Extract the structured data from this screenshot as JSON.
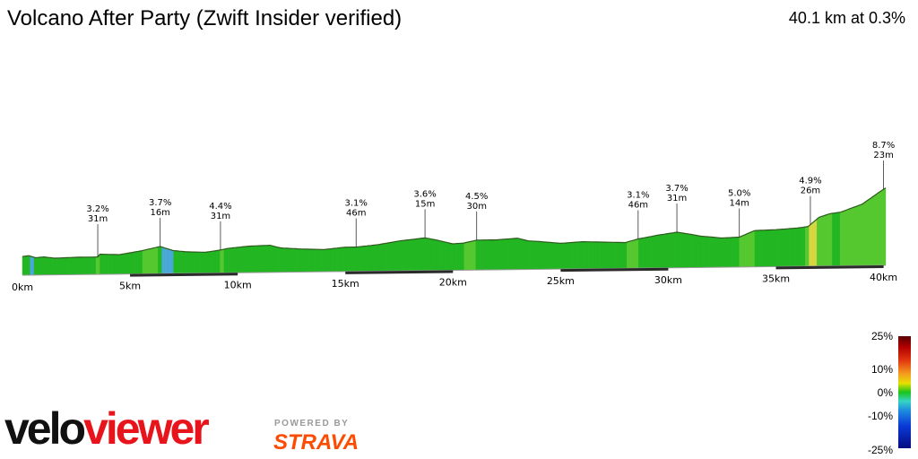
{
  "header": {
    "title": "Volcano After Party (Zwift Insider verified)",
    "summary": "40.1 km at 0.3%"
  },
  "chart_data": {
    "type": "area",
    "title": "Volcano After Party (Zwift Insider verified)",
    "subtitle": "40.1 km at 0.3%",
    "xlabel": "",
    "ylabel": "",
    "xlim": [
      0,
      40.1
    ],
    "x_tick_labels": [
      "0km",
      "5km",
      "10km",
      "15km",
      "20km",
      "25km",
      "30km",
      "35km",
      "40km"
    ],
    "x_ticks": [
      0,
      5,
      10,
      15,
      20,
      25,
      30,
      35,
      40
    ],
    "distance_km": [
      0,
      0.3,
      0.6,
      1.0,
      1.5,
      2.5,
      3.5,
      3.6,
      4.5,
      5.5,
      6.4,
      7.0,
      7.6,
      8.5,
      9.2,
      9.5,
      10.5,
      11.5,
      12.0,
      12.5,
      13.0,
      14.0,
      15.0,
      15.5,
      16.5,
      17.5,
      18.7,
      19.2,
      20.0,
      20.5,
      21.1,
      22.0,
      23.0,
      23.5,
      24.0,
      25.0,
      26.0,
      27.0,
      28.0,
      28.6,
      29.5,
      30.4,
      31.0,
      31.5,
      32.5,
      33.3,
      34.0,
      35.0,
      36.0,
      36.5,
      37.0,
      37.5,
      38.0,
      39.0,
      39.8,
      40.1
    ],
    "elevation_m": [
      14,
      15,
      12,
      13,
      11,
      12,
      12,
      16,
      15,
      20,
      26,
      20,
      18,
      17,
      20,
      22,
      25,
      26,
      22,
      21,
      20,
      19,
      22,
      22,
      25,
      30,
      34,
      31,
      25,
      26,
      30,
      30,
      32,
      28,
      27,
      24,
      26,
      25,
      24,
      29,
      34,
      38,
      35,
      32,
      29,
      30,
      39,
      40,
      42,
      44,
      57,
      62,
      64,
      75,
      92,
      98
    ],
    "gradient_colorscale": {
      "ticks": [
        "25%",
        "10%",
        "0%",
        "-10%",
        "-25%"
      ],
      "colors": [
        "#5a0000",
        "#b40000",
        "#f5a020",
        "#e6e000",
        "#1ac41a",
        "#36d4c4",
        "#1e8ee0",
        "#050a80"
      ]
    },
    "annotations": [
      {
        "km": 3.5,
        "gradient": "3.2%",
        "length": "31m"
      },
      {
        "km": 6.4,
        "gradient": "3.7%",
        "length": "16m"
      },
      {
        "km": 9.2,
        "gradient": "4.4%",
        "length": "31m"
      },
      {
        "km": 15.5,
        "gradient": "3.1%",
        "length": "46m"
      },
      {
        "km": 18.7,
        "gradient": "3.6%",
        "length": "15m"
      },
      {
        "km": 21.1,
        "gradient": "4.5%",
        "length": "30m"
      },
      {
        "km": 28.6,
        "gradient": "3.1%",
        "length": "46m"
      },
      {
        "km": 30.4,
        "gradient": "3.7%",
        "length": "31m"
      },
      {
        "km": 33.3,
        "gradient": "5.0%",
        "length": "14m"
      },
      {
        "km": 36.6,
        "gradient": "4.9%",
        "length": "26m"
      },
      {
        "km": 40.0,
        "gradient": "8.7%",
        "length": "23m"
      }
    ]
  },
  "legend": {
    "labels": [
      "25%",
      "10%",
      "0%",
      "-10%",
      "-25%"
    ]
  },
  "branding": {
    "velo": "velo",
    "viewer": "viewer",
    "powered_by": "POWERED BY",
    "strava": "STRAVA"
  },
  "colors": {
    "flat_green": "#22b622",
    "climb_green": "#55c830",
    "descent_blue": "#4aa8d8",
    "steep_yellow": "#d6d640",
    "baseline": "#2a2a2a",
    "velo_black": "#111111",
    "viewer_red": "#e8141b",
    "strava_orange": "#fc4c02"
  }
}
